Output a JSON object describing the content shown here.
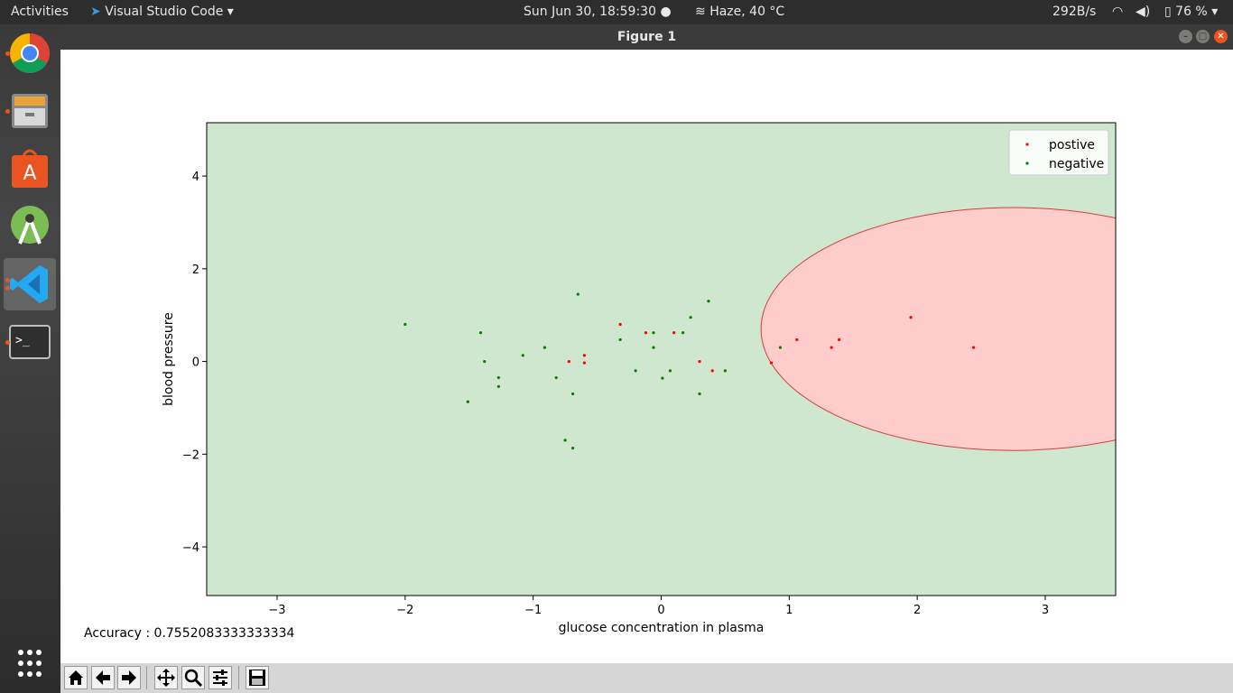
{
  "topbar": {
    "activities": "Activities",
    "app_name": "Visual Studio Code",
    "clock": "Sun Jun 30, 18:59:30",
    "weather": "Haze, 40 °C",
    "net_speed": "292B/s",
    "battery": "76 %"
  },
  "window": {
    "title": "Figure 1"
  },
  "dock": {
    "items": [
      "chrome",
      "files",
      "software-center",
      "android-studio",
      "vscode",
      "terminal",
      "show-applications"
    ]
  },
  "figure": {
    "accuracy_text": "Accuracy : 0.7552083333333334"
  },
  "toolbar": {
    "buttons": [
      "home",
      "back",
      "forward",
      "pan",
      "zoom",
      "configure-subplots",
      "save"
    ]
  },
  "colors": {
    "accent": "#e95420",
    "background_region": "#cfe6cf",
    "positive_region": "#ffcccc",
    "positive": "#ff0000",
    "negative": "#008000"
  },
  "chart_data": {
    "type": "scatter",
    "xlabel": "glucose concentration in plasma",
    "ylabel": "blood pressure",
    "xlim": [
      -3.55,
      3.55
    ],
    "ylim": [
      -5.05,
      5.15
    ],
    "xticks": [
      -3,
      -2,
      -1,
      0,
      1,
      2,
      3
    ],
    "yticks": [
      -4,
      -2,
      0,
      2,
      4
    ],
    "xtick_labels": [
      "−3",
      "−2",
      "−1",
      "0",
      "1",
      "2",
      "3"
    ],
    "ytick_labels": [
      "−4",
      "−2",
      "0",
      "2",
      "4"
    ],
    "legend_position": "top-right",
    "decision_region": {
      "shape": "ellipse",
      "center": [
        2.75,
        0.7
      ],
      "rx": 1.97,
      "ry": 2.62,
      "label": "positive"
    },
    "series": [
      {
        "name": "postive",
        "color": "#ff0000",
        "points": [
          [
            -0.32,
            0.8
          ],
          [
            -0.12,
            0.62
          ],
          [
            0.1,
            0.62
          ],
          [
            -0.72,
            0.0
          ],
          [
            -0.6,
            0.13
          ],
          [
            -0.6,
            -0.03
          ],
          [
            0.3,
            0.0
          ],
          [
            0.4,
            -0.2
          ],
          [
            0.86,
            -0.03
          ],
          [
            1.06,
            0.47
          ],
          [
            1.33,
            0.3
          ],
          [
            1.39,
            0.47
          ],
          [
            1.95,
            0.95
          ],
          [
            2.44,
            0.3
          ]
        ]
      },
      {
        "name": "negative",
        "color": "#008000",
        "points": [
          [
            -2.0,
            0.8
          ],
          [
            -1.41,
            0.62
          ],
          [
            -1.38,
            0.0
          ],
          [
            -1.27,
            -0.35
          ],
          [
            -1.27,
            -0.54
          ],
          [
            -1.51,
            -0.87
          ],
          [
            -1.08,
            0.13
          ],
          [
            -0.91,
            0.3
          ],
          [
            -0.82,
            -0.35
          ],
          [
            -0.69,
            -0.7
          ],
          [
            -0.75,
            -1.7
          ],
          [
            -0.69,
            -1.87
          ],
          [
            -0.65,
            1.45
          ],
          [
            -0.32,
            0.47
          ],
          [
            -0.2,
            -0.2
          ],
          [
            -0.06,
            0.62
          ],
          [
            -0.06,
            0.3
          ],
          [
            0.01,
            -0.36
          ],
          [
            0.07,
            -0.2
          ],
          [
            0.17,
            0.62
          ],
          [
            0.23,
            0.95
          ],
          [
            0.3,
            -0.7
          ],
          [
            0.37,
            1.3
          ],
          [
            0.5,
            -0.2
          ],
          [
            0.93,
            0.3
          ]
        ]
      }
    ]
  }
}
